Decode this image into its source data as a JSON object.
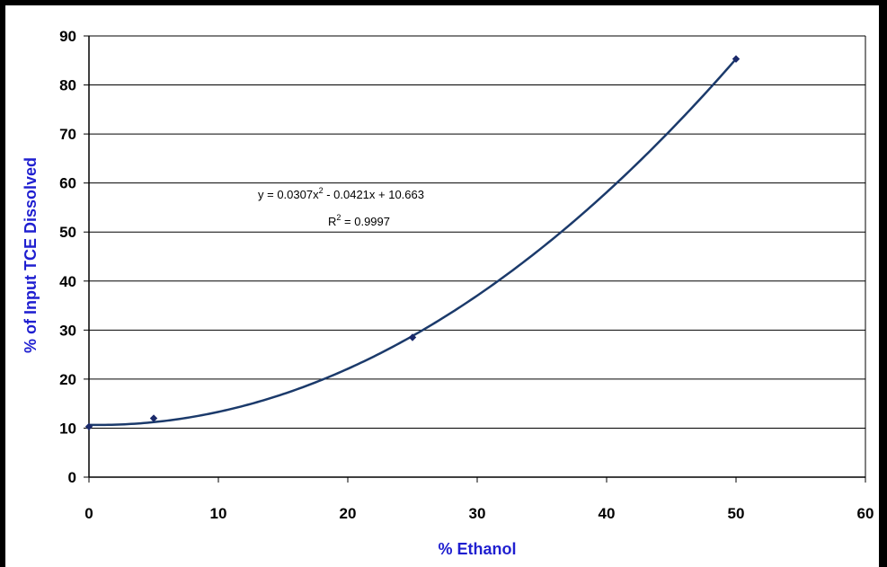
{
  "chart_data": {
    "type": "scatter",
    "xlabel": "% Ethanol",
    "ylabel": "% of Input TCE Dissolved",
    "xlim": [
      0,
      60
    ],
    "ylim": [
      0,
      90
    ],
    "xticks": [
      "0",
      "10",
      "20",
      "30",
      "40",
      "50",
      "60"
    ],
    "yticks": [
      "0",
      "10",
      "20",
      "30",
      "40",
      "50",
      "60",
      "70",
      "80",
      "90"
    ],
    "grid": "horizontal",
    "legend": "none",
    "series": [
      {
        "points": [
          {
            "x": 0,
            "y": 10.3
          },
          {
            "x": 5,
            "y": 12.0
          },
          {
            "x": 25,
            "y": 28.5
          },
          {
            "x": 50,
            "y": 85.3
          }
        ],
        "marker_color": "#1b2a6b"
      }
    ],
    "trendline": {
      "type": "polynomial",
      "coefficients": {
        "a": 0.0307,
        "b": -0.0421,
        "c": 10.663
      },
      "x_range": [
        0,
        50
      ],
      "color": "#1b3a6b",
      "equation_parts": [
        "y = 0.0307x",
        "2",
        " - 0.0421x + 10.663"
      ],
      "r2_parts": [
        "R",
        "2",
        " = 0.9997"
      ]
    }
  }
}
